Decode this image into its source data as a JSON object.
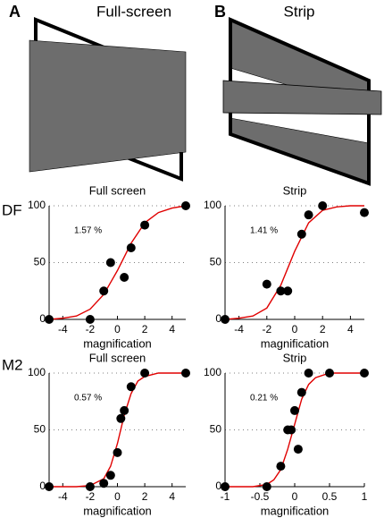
{
  "figure": {
    "panel_a": {
      "label": "A",
      "title": "Full-screen"
    },
    "panel_b": {
      "label": "B",
      "title": "Strip"
    },
    "row_labels": [
      "DF",
      "M2"
    ]
  },
  "chart_data": [
    {
      "type": "scatter",
      "title": "Full screen",
      "xlabel": "magnification",
      "annotation": "1.57 %",
      "xlim": [
        -5,
        5
      ],
      "xticks": [
        -4,
        -2,
        0,
        2,
        4
      ],
      "ylim": [
        0,
        100
      ],
      "yticks": [
        0,
        50,
        100
      ],
      "color": "#000000",
      "x": [
        -5,
        -2,
        -1,
        -0.5,
        0.5,
        1,
        2,
        5
      ],
      "values": [
        0,
        0,
        25,
        50,
        37,
        63,
        83,
        100
      ],
      "fit": {
        "color": "#e00000",
        "x": [
          -5,
          -4,
          -3,
          -2,
          -1,
          0,
          1,
          2,
          3,
          4,
          5
        ],
        "y": [
          0,
          1,
          3,
          9,
          22,
          43,
          67,
          85,
          94,
          98,
          100
        ]
      }
    },
    {
      "type": "scatter",
      "title": "Strip",
      "xlabel": "magnification",
      "annotation": "1.41 %",
      "xlim": [
        -5,
        5
      ],
      "xticks": [
        -4,
        -2,
        0,
        2,
        4
      ],
      "ylim": [
        0,
        100
      ],
      "yticks": [
        0,
        50,
        100
      ],
      "color": "#000000",
      "x": [
        -5,
        -2,
        -1,
        -0.5,
        0.5,
        1,
        2,
        5
      ],
      "values": [
        0,
        31,
        25,
        25,
        75,
        92,
        100,
        94
      ],
      "fit": {
        "color": "#e00000",
        "x": [
          -5,
          -4,
          -3,
          -2,
          -1,
          0,
          1,
          2,
          3,
          4,
          5
        ],
        "y": [
          0,
          1,
          3,
          10,
          30,
          60,
          85,
          96,
          99,
          100,
          100
        ]
      }
    },
    {
      "type": "scatter",
      "title": "Full screen",
      "xlabel": "magnification",
      "annotation": "0.57 %",
      "xlim": [
        -5,
        5
      ],
      "xticks": [
        -4,
        -2,
        0,
        2,
        4
      ],
      "ylim": [
        0,
        100
      ],
      "yticks": [
        0,
        50,
        100
      ],
      "color": "#000000",
      "x": [
        -5,
        -2,
        -1,
        -0.5,
        0,
        0.25,
        0.5,
        1,
        2,
        5
      ],
      "values": [
        0,
        0,
        3,
        10,
        30,
        60,
        67,
        88,
        100,
        100
      ],
      "fit": {
        "color": "#e00000",
        "x": [
          -5,
          -3,
          -2,
          -1,
          -0.5,
          0,
          0.5,
          1,
          1.5,
          2,
          3,
          5
        ],
        "y": [
          0,
          0,
          1,
          7,
          18,
          38,
          63,
          82,
          93,
          97,
          100,
          100
        ]
      }
    },
    {
      "type": "scatter",
      "title": "Strip",
      "xlabel": "magnification",
      "annotation": "0.21 %",
      "xlim": [
        -1,
        1
      ],
      "xticks": [
        -1,
        -0.5,
        0,
        0.5,
        1
      ],
      "ylim": [
        0,
        100
      ],
      "yticks": [
        0,
        50,
        100
      ],
      "color": "#000000",
      "x": [
        -1,
        -0.4,
        -0.2,
        -0.1,
        -0.05,
        0,
        0.05,
        0.1,
        0.2,
        0.5,
        1
      ],
      "values": [
        0,
        0,
        18,
        50,
        50,
        67,
        33,
        83,
        100,
        100,
        100
      ],
      "fit": {
        "color": "#e00000",
        "x": [
          -1,
          -0.6,
          -0.4,
          -0.3,
          -0.2,
          -0.1,
          0,
          0.1,
          0.2,
          0.3,
          0.5,
          1
        ],
        "y": [
          0,
          0,
          2,
          6,
          15,
          33,
          55,
          77,
          90,
          96,
          100,
          100
        ]
      }
    }
  ]
}
